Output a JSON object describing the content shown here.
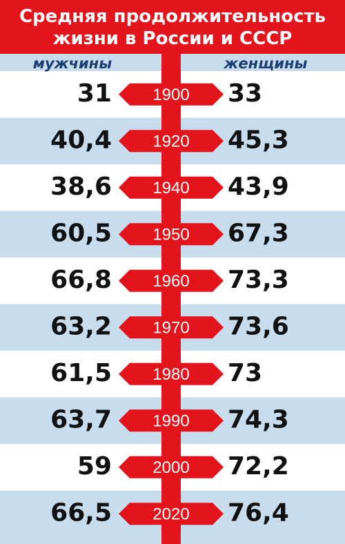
{
  "header": {
    "title_lines": [
      "Средняя продолжительность",
      "жизни в России и СССР"
    ]
  },
  "table": {
    "columns": [
      "мужчины",
      "женщины"
    ],
    "rows": [
      {
        "year": "1900",
        "men": "31",
        "women": "33"
      },
      {
        "year": "1920",
        "men": "40,4",
        "women": "45,3"
      },
      {
        "year": "1940",
        "men": "38,6",
        "women": "43,9"
      },
      {
        "year": "1950",
        "men": "60,5",
        "women": "67,3"
      },
      {
        "year": "1960",
        "men": "66,8",
        "women": "73,3"
      },
      {
        "year": "1970",
        "men": "63,2",
        "women": "73,6"
      },
      {
        "year": "1980",
        "men": "61,5",
        "women": "73"
      },
      {
        "year": "1990",
        "men": "63,7",
        "women": "74,3"
      },
      {
        "year": "2000",
        "men": "59",
        "women": "72,2"
      },
      {
        "year": "2020",
        "men": "66,5",
        "women": "76,4"
      }
    ]
  }
}
